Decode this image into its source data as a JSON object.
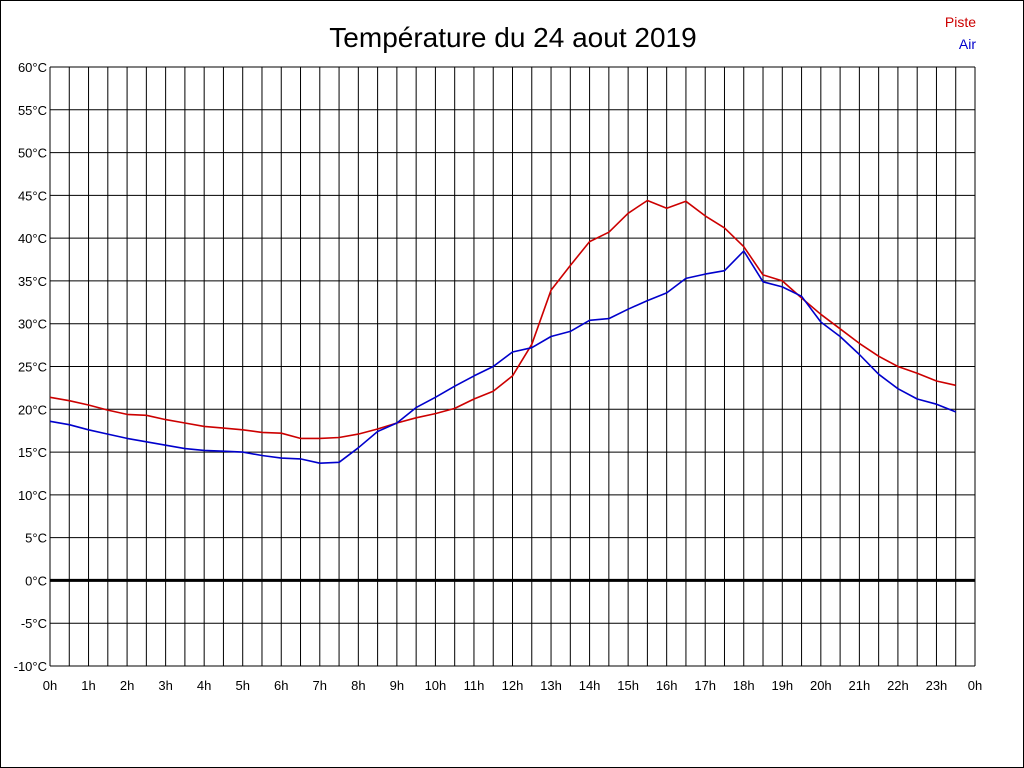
{
  "chart_data": {
    "type": "line",
    "title": "Température du 24 aout 2019",
    "xlabel": "",
    "ylabel": "",
    "ylim": [
      -10,
      60
    ],
    "xlim": [
      0,
      24
    ],
    "grid": true,
    "legend_placement": "top-right",
    "y_ticks": [
      "-10°C",
      "-5°C",
      "0°C",
      "5°C",
      "10°C",
      "15°C",
      "20°C",
      "25°C",
      "30°C",
      "35°C",
      "40°C",
      "45°C",
      "50°C",
      "55°C",
      "60°C"
    ],
    "y_tick_values": [
      -10,
      -5,
      0,
      5,
      10,
      15,
      20,
      25,
      30,
      35,
      40,
      45,
      50,
      55,
      60
    ],
    "x_ticks": [
      "0h",
      "1h",
      "2h",
      "3h",
      "4h",
      "5h",
      "6h",
      "7h",
      "8h",
      "9h",
      "10h",
      "11h",
      "12h",
      "13h",
      "14h",
      "15h",
      "16h",
      "17h",
      "18h",
      "19h",
      "20h",
      "21h",
      "22h",
      "23h",
      "0h"
    ],
    "x": [
      0,
      0.5,
      1,
      1.5,
      2,
      2.5,
      3,
      3.5,
      4,
      4.5,
      5,
      5.5,
      6,
      6.5,
      7,
      7.5,
      8,
      8.5,
      9,
      9.5,
      10,
      10.5,
      11,
      11.5,
      12,
      12.5,
      13,
      13.5,
      14,
      14.5,
      15,
      15.5,
      16,
      16.5,
      17,
      17.5,
      18,
      18.5,
      19,
      19.5,
      20,
      20.5,
      21,
      21.5,
      22,
      22.5,
      23,
      23.5
    ],
    "series": [
      {
        "name": "Piste",
        "color": "#cc0000",
        "values": [
          21.4,
          21.0,
          20.5,
          19.9,
          19.4,
          19.3,
          18.8,
          18.4,
          18.0,
          17.8,
          17.6,
          17.3,
          17.2,
          16.6,
          16.6,
          16.7,
          17.1,
          17.7,
          18.4,
          19.0,
          19.5,
          20.1,
          21.2,
          22.1,
          23.9,
          27.6,
          33.9,
          36.8,
          39.6,
          40.7,
          42.9,
          44.4,
          43.5,
          44.3,
          42.6,
          41.2,
          39.0,
          35.7,
          35.0,
          33.0,
          31.1,
          29.4,
          27.7,
          26.2,
          25.0,
          24.2,
          23.3,
          22.8
        ]
      },
      {
        "name": "Air",
        "color": "#0000cc",
        "values": [
          18.6,
          18.2,
          17.6,
          17.1,
          16.6,
          16.2,
          15.8,
          15.4,
          15.2,
          15.1,
          15.0,
          14.6,
          14.3,
          14.2,
          13.7,
          13.8,
          15.5,
          17.4,
          18.4,
          20.2,
          21.4,
          22.7,
          23.9,
          25.0,
          26.7,
          27.2,
          28.5,
          29.1,
          30.4,
          30.6,
          31.7,
          32.7,
          33.6,
          35.3,
          35.8,
          36.2,
          38.5,
          34.9,
          34.3,
          33.2,
          30.2,
          28.5,
          26.4,
          24.1,
          22.4,
          21.2,
          20.6,
          19.7
        ]
      }
    ],
    "reference_line": 0
  }
}
